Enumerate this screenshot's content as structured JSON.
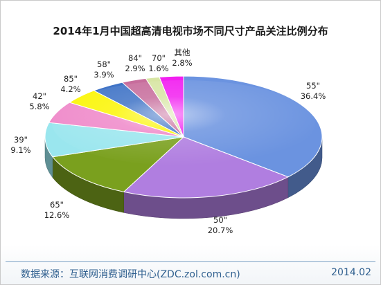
{
  "chart_data": {
    "type": "pie",
    "title": "2014年1月中国超高清电视市场不同尺寸产品关注比例分布",
    "slices": [
      {
        "label": "55\"",
        "value": 36.4,
        "value_text": "36.4%",
        "color": "#6b93e0"
      },
      {
        "label": "50\"",
        "value": 20.7,
        "value_text": "20.7%",
        "color": "#b07ee0"
      },
      {
        "label": "65\"",
        "value": 12.6,
        "value_text": "12.6%",
        "color": "#7aa01e"
      },
      {
        "label": "39\"",
        "value": 9.1,
        "value_text": "9.1%",
        "color": "#9ae6ee"
      },
      {
        "label": "42\"",
        "value": 5.8,
        "value_text": "5.8%",
        "color": "#ef88c9"
      },
      {
        "label": "85\"",
        "value": 4.2,
        "value_text": "4.2%",
        "color": "#fbf504"
      },
      {
        "label": "58\"",
        "value": 3.9,
        "value_text": "3.9%",
        "color": "#3f73c6"
      },
      {
        "label": "84\"",
        "value": 2.9,
        "value_text": "2.9%",
        "color": "#c76d9c"
      },
      {
        "label": "70\"",
        "value": 1.6,
        "value_text": "1.6%",
        "color": "#d7e5a3"
      },
      {
        "label": "其他",
        "value": 2.8,
        "value_text": "2.8%",
        "color": "#f21ff0"
      }
    ]
  },
  "footer": {
    "source": "数据来源：互联网消费调研中心(ZDC.zol.com.cn)",
    "date": "2014.02"
  }
}
